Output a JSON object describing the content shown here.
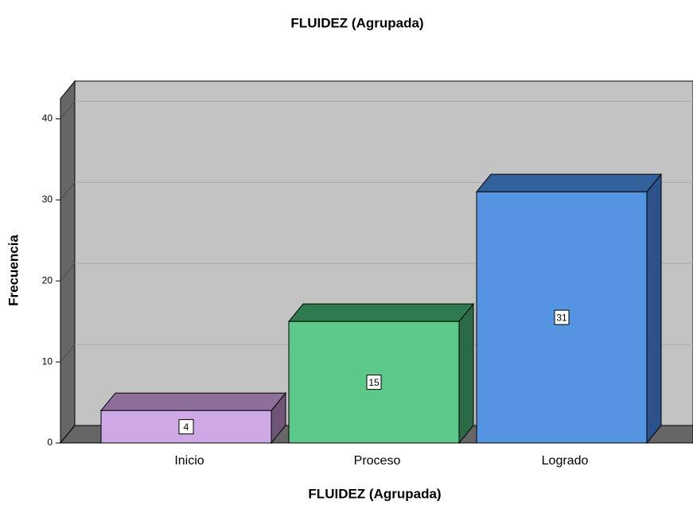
{
  "chart_data": {
    "type": "bar3d",
    "title": "FLUIDEZ (Agrupada)",
    "x_label": "FLUIDEZ (Agrupada)",
    "y_label": "Frecuencia",
    "categories": [
      "Inicio",
      "Proceso",
      "Logrado"
    ],
    "values": [
      4,
      15,
      31
    ],
    "colors": [
      "#cfa9e5",
      "#5cc98a",
      "#5594e0"
    ],
    "top_colors": [
      "#8e6f9c",
      "#2f7b4f",
      "#31609a"
    ],
    "side_colors": [
      "#6f5679",
      "#2a6b45",
      "#2b528a"
    ],
    "ylim": [
      0,
      42.5
    ],
    "yticks": [
      0,
      10,
      20,
      30,
      40
    ],
    "grid": true
  }
}
